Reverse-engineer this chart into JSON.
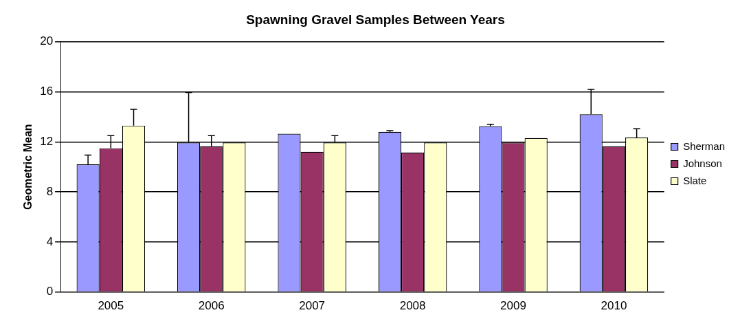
{
  "chart_data": {
    "type": "bar",
    "title": "Spawning Gravel Samples Between Years",
    "ylabel": "Geometric Mean",
    "categories": [
      "2005",
      "2006",
      "2007",
      "2008",
      "2009",
      "2010"
    ],
    "series": [
      {
        "name": "Sherman",
        "color": "#9999ff",
        "values": [
          10.2,
          11.95,
          12.65,
          12.8,
          13.25,
          14.2
        ],
        "errors": [
          [
            10.2,
            10.95
          ],
          [
            11.95,
            15.95
          ],
          null,
          [
            12.8,
            12.9
          ],
          [
            13.25,
            13.4
          ],
          [
            14.2,
            16.2
          ]
        ]
      },
      {
        "name": "Johnson",
        "color": "#993366",
        "values": [
          11.5,
          11.65,
          11.2,
          11.15,
          11.95,
          11.65
        ],
        "errors": [
          [
            11.5,
            12.5
          ],
          [
            11.65,
            12.5
          ],
          null,
          null,
          null,
          null
        ]
      },
      {
        "name": "Slate",
        "color": "#ffffcc",
        "values": [
          13.3,
          11.95,
          11.95,
          11.95,
          12.3,
          12.35
        ],
        "errors": [
          [
            13.3,
            14.6
          ],
          null,
          [
            11.95,
            12.5
          ],
          null,
          null,
          [
            12.35,
            13.05
          ]
        ]
      }
    ],
    "ylim": [
      0,
      20
    ],
    "yticks": [
      0,
      4,
      8,
      12,
      16,
      20
    ],
    "grid": "y",
    "legend": "right"
  }
}
